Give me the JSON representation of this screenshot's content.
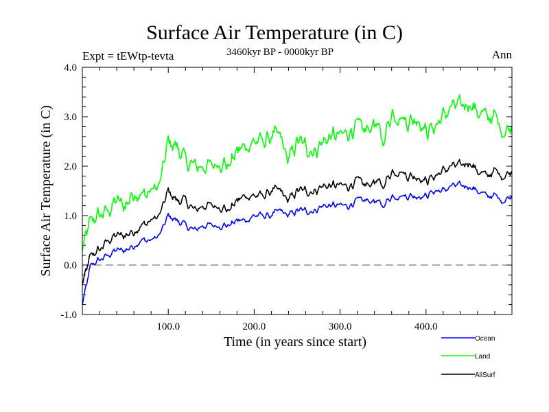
{
  "chart_data": {
    "type": "line",
    "title": "Surface Air Temperature (in C)",
    "subtitle": "3460kyr BP - 0000kyr BP",
    "left_label": "Expt = tEWtp-tevta",
    "right_label": "Ann",
    "xlabel": "Time (in years since start)",
    "ylabel": "Surface Air Temperature (in C)",
    "xlim": [
      0,
      500
    ],
    "ylim": [
      -1.0,
      4.0
    ],
    "x_ticks": [
      100,
      200,
      300,
      400
    ],
    "x_tick_labels": [
      "100.0",
      "200.0",
      "300.0",
      "400.0"
    ],
    "x_minor_step": 20,
    "y_ticks": [
      -1,
      0,
      1,
      2,
      3,
      4
    ],
    "y_tick_labels": [
      "-1.0",
      "0.0",
      "1.0",
      "2.0",
      "3.0",
      "4.0"
    ],
    "y_minor_step": 0.2,
    "reference_line": {
      "y": 0.0,
      "style": "dashed",
      "color": "#555555"
    },
    "grid": false,
    "legend_position": "bottom-right-outside",
    "x": [
      0,
      10,
      20,
      30,
      40,
      50,
      60,
      70,
      80,
      90,
      100,
      110,
      120,
      130,
      140,
      150,
      160,
      170,
      180,
      190,
      200,
      210,
      220,
      230,
      240,
      250,
      260,
      270,
      280,
      290,
      300,
      310,
      320,
      330,
      340,
      350,
      360,
      370,
      380,
      390,
      400,
      410,
      420,
      430,
      440,
      450,
      460,
      470,
      480,
      490,
      500
    ],
    "series": [
      {
        "name": "Ocean",
        "color": "#0000ff",
        "values": [
          -0.8,
          0.0,
          0.1,
          0.2,
          0.3,
          0.3,
          0.4,
          0.5,
          0.5,
          0.6,
          1.0,
          0.9,
          0.8,
          0.7,
          0.8,
          0.8,
          0.8,
          0.8,
          0.9,
          0.9,
          1.0,
          1.0,
          1.0,
          1.1,
          1.0,
          1.1,
          1.1,
          1.1,
          1.2,
          1.2,
          1.2,
          1.2,
          1.3,
          1.3,
          1.3,
          1.2,
          1.4,
          1.4,
          1.4,
          1.4,
          1.4,
          1.5,
          1.5,
          1.6,
          1.6,
          1.6,
          1.5,
          1.4,
          1.4,
          1.3,
          1.4
        ]
      },
      {
        "name": "Land",
        "color": "#00ff00",
        "values": [
          0.3,
          0.9,
          1.0,
          1.1,
          1.3,
          1.2,
          1.5,
          1.4,
          1.5,
          1.6,
          2.5,
          2.4,
          2.1,
          2.0,
          2.0,
          2.0,
          2.1,
          2.0,
          2.3,
          2.4,
          2.5,
          2.5,
          2.6,
          2.6,
          2.1,
          2.5,
          2.4,
          2.3,
          2.5,
          2.6,
          2.6,
          2.7,
          2.8,
          2.7,
          2.9,
          2.5,
          3.1,
          3.0,
          2.9,
          3.0,
          2.7,
          2.8,
          3.0,
          3.2,
          3.2,
          3.3,
          3.1,
          3.0,
          3.0,
          2.7,
          2.8
        ]
      },
      {
        "name": "AllSurf",
        "color": "#000000",
        "values": [
          -0.4,
          0.2,
          0.3,
          0.5,
          0.6,
          0.6,
          0.7,
          0.8,
          0.9,
          1.0,
          1.5,
          1.3,
          1.3,
          1.1,
          1.2,
          1.2,
          1.2,
          1.1,
          1.3,
          1.4,
          1.4,
          1.4,
          1.5,
          1.5,
          1.3,
          1.5,
          1.5,
          1.5,
          1.6,
          1.6,
          1.6,
          1.6,
          1.7,
          1.6,
          1.7,
          1.6,
          1.9,
          1.9,
          1.8,
          1.8,
          1.7,
          1.8,
          1.9,
          2.0,
          2.0,
          2.1,
          1.9,
          1.8,
          1.9,
          1.8,
          1.9
        ]
      }
    ],
    "legend": [
      {
        "name": "Ocean",
        "color": "#0000ff"
      },
      {
        "name": "Land",
        "color": "#00ff00"
      },
      {
        "name": "AllSurf",
        "color": "#000000"
      }
    ]
  }
}
